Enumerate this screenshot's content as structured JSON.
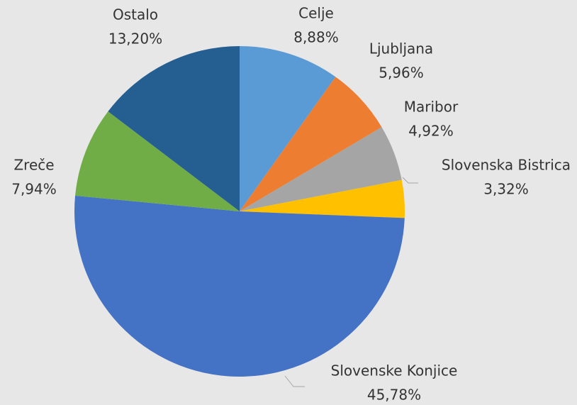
{
  "chart_data": {
    "type": "pie",
    "categories": [
      "Celje",
      "Ljubljana",
      "Maribor",
      "Slovenska Bistrica",
      "Slovenske Konjice",
      "Zreče",
      "Ostalo"
    ],
    "values": [
      8.88,
      5.96,
      4.92,
      3.32,
      45.78,
      7.94,
      13.2
    ],
    "value_labels": [
      "8,88%",
      "5,96%",
      "4,92%",
      "3,32%",
      "45,78%",
      "7,94%",
      "13,20%"
    ],
    "colors": [
      "#5b9bd5",
      "#ed7d31",
      "#a5a5a5",
      "#ffc000",
      "#4472c4",
      "#70ad47",
      "#255e91"
    ]
  }
}
